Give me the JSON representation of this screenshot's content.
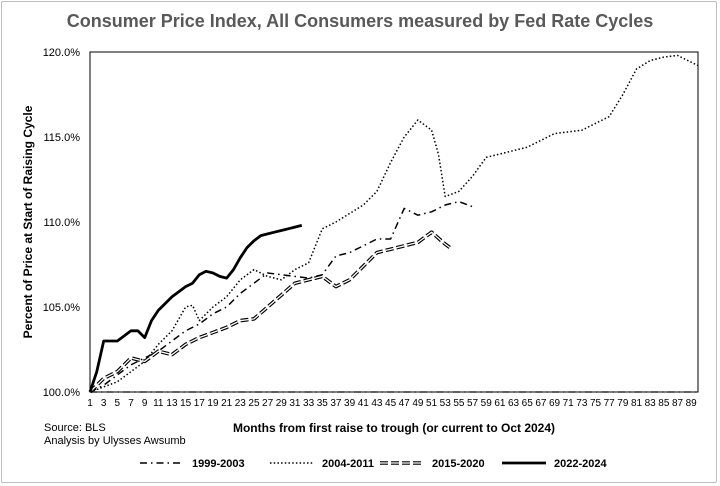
{
  "source": "Source: BLS",
  "analysis": "Analysis by Ulysses Awsumb",
  "chart_data": {
    "type": "line",
    "title": "Consumer Price Index, All Consumers measured by Fed Rate Cycles",
    "xlabel": "Months from first raise to trough (or current to Oct 2024)",
    "ylabel": "Percent of Price at Start of Raising Cycle",
    "xlim": [
      1,
      90
    ],
    "ylim": [
      100,
      120
    ],
    "x_ticks": [
      1,
      3,
      5,
      7,
      9,
      11,
      13,
      15,
      17,
      19,
      21,
      23,
      25,
      27,
      29,
      31,
      33,
      35,
      37,
      39,
      41,
      43,
      45,
      47,
      49,
      51,
      53,
      55,
      57,
      59,
      61,
      63,
      65,
      67,
      69,
      71,
      73,
      75,
      77,
      79,
      81,
      83,
      85,
      87,
      89
    ],
    "y_ticks": [
      {
        "value": 100,
        "label": "100.0%"
      },
      {
        "value": 105,
        "label": "105.0%"
      },
      {
        "value": 110,
        "label": "110.0%"
      },
      {
        "value": 115,
        "label": "115.0%"
      },
      {
        "value": 120,
        "label": "120.0%"
      }
    ],
    "legend_position": "bottom",
    "series": [
      {
        "name": "1999-2003",
        "style": "dashdot",
        "color": "#000000",
        "x": [
          1,
          3,
          5,
          7,
          9,
          11,
          13,
          15,
          17,
          19,
          21,
          23,
          25,
          27,
          29,
          31,
          33,
          35,
          37,
          39,
          41,
          43,
          45,
          47,
          49,
          51,
          53,
          55,
          57
        ],
        "y": [
          100.0,
          100.4,
          101.0,
          101.6,
          102.0,
          102.4,
          103.0,
          103.6,
          104.0,
          104.6,
          105.0,
          105.8,
          106.4,
          107.0,
          106.9,
          106.8,
          106.7,
          106.9,
          108.0,
          108.2,
          108.6,
          109.0,
          109.0,
          110.8,
          110.4,
          110.6,
          111.0,
          111.2,
          110.9
        ]
      },
      {
        "name": "2004-2011",
        "style": "dotted",
        "color": "#000000",
        "x": [
          1,
          3,
          5,
          7,
          9,
          11,
          13,
          15,
          16,
          17,
          19,
          21,
          23,
          25,
          27,
          29,
          31,
          33,
          35,
          37,
          39,
          41,
          43,
          45,
          47,
          49,
          51,
          52,
          53,
          55,
          57,
          59,
          61,
          63,
          65,
          67,
          69,
          71,
          73,
          75,
          77,
          79,
          81,
          83,
          85,
          87,
          89,
          90
        ],
        "y": [
          100.0,
          100.3,
          100.6,
          101.2,
          101.8,
          102.8,
          103.6,
          105.0,
          105.1,
          104.2,
          105.0,
          105.6,
          106.6,
          107.2,
          106.8,
          106.6,
          107.2,
          107.6,
          109.6,
          110.0,
          110.5,
          111.0,
          111.8,
          113.5,
          115.0,
          116.0,
          115.4,
          114.0,
          111.5,
          111.8,
          112.7,
          113.8,
          114.0,
          114.2,
          114.4,
          114.8,
          115.2,
          115.3,
          115.4,
          115.8,
          116.2,
          117.5,
          119.0,
          119.5,
          119.7,
          119.8,
          119.4,
          119.2
        ]
      },
      {
        "name": "2015-2020",
        "style": "dashed",
        "color": "#000000",
        "x": [
          1,
          3,
          5,
          7,
          9,
          11,
          13,
          15,
          17,
          19,
          21,
          23,
          25,
          27,
          29,
          31,
          33,
          35,
          37,
          39,
          41,
          43,
          45,
          47,
          49,
          51,
          53,
          54
        ],
        "y": [
          100.0,
          100.8,
          101.2,
          102.0,
          101.8,
          102.4,
          102.2,
          102.8,
          103.2,
          103.5,
          103.8,
          104.2,
          104.3,
          105.0,
          105.7,
          106.4,
          106.6,
          106.8,
          106.2,
          106.6,
          107.4,
          108.2,
          108.4,
          108.6,
          108.8,
          109.4,
          108.7,
          108.4
        ]
      },
      {
        "name": "2022-2024",
        "style": "solid",
        "color": "#000000",
        "x": [
          1,
          2,
          3,
          4,
          5,
          6,
          7,
          8,
          9,
          10,
          11,
          12,
          13,
          14,
          15,
          16,
          17,
          18,
          19,
          20,
          21,
          22,
          23,
          24,
          25,
          26,
          27,
          28,
          29,
          30,
          31,
          32
        ],
        "y": [
          100.0,
          101.2,
          103.0,
          103.0,
          103.0,
          103.3,
          103.6,
          103.6,
          103.2,
          104.2,
          104.8,
          105.2,
          105.6,
          105.9,
          106.2,
          106.4,
          106.9,
          107.1,
          107.0,
          106.8,
          106.7,
          107.2,
          107.9,
          108.5,
          108.9,
          109.2,
          109.3,
          109.4,
          109.5,
          109.6,
          109.7,
          109.8
        ]
      }
    ]
  }
}
